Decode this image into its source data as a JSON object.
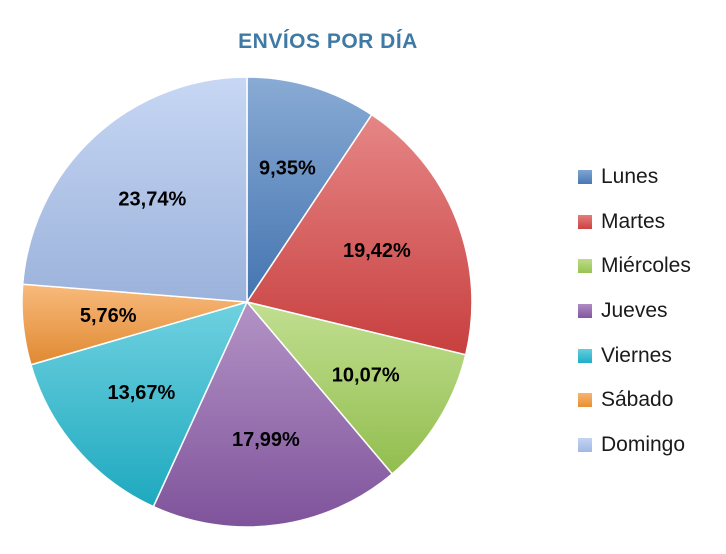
{
  "chart_data": {
    "type": "pie",
    "title": "ENVÍOS POR DÍA",
    "categories": [
      "Lunes",
      "Martes",
      "Miércoles",
      "Jueves",
      "Viernes",
      "Sábado",
      "Domingo"
    ],
    "values": [
      9.35,
      19.42,
      10.07,
      17.99,
      13.67,
      5.76,
      23.74
    ],
    "value_labels": [
      "9,35%",
      "19,42%",
      "10,07%",
      "17,99%",
      "13,67%",
      "5,76%",
      "23,74%"
    ],
    "colors": [
      "#4a7ebf",
      "#d94545",
      "#9fcd55",
      "#8a5aa8",
      "#21b8d0",
      "#f49535",
      "#a9c2ee"
    ],
    "legend_position": "right",
    "start_angle": "12 o'clock",
    "direction": "clockwise"
  }
}
